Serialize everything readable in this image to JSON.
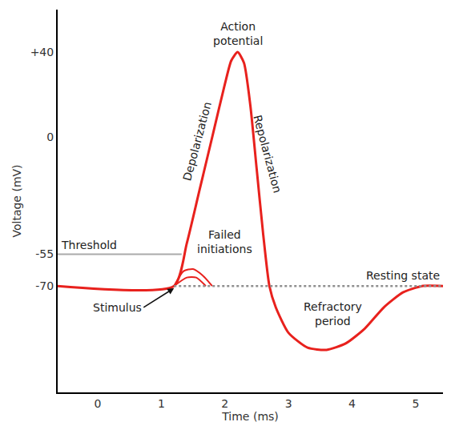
{
  "chart_data": {
    "type": "line",
    "xlabel": "Time (ms)",
    "ylabel": "Voltage (mV)",
    "xlim": [
      -0.63,
      5.43
    ],
    "ylim": [
      -120,
      60
    ],
    "xticks": [
      0,
      1,
      2,
      3,
      4,
      5
    ],
    "yticks": [
      -70,
      -55,
      0,
      {
        "value": 40,
        "label": "+40"
      }
    ],
    "grid": false,
    "series": [
      {
        "name": "Action potential",
        "color": "#e8211d",
        "line_style": "solid",
        "x": [
          -0.63,
          1.2,
          1.4,
          1.6,
          1.8,
          2.0,
          2.1,
          2.2,
          2.3,
          2.4,
          2.5,
          2.6,
          2.7,
          2.8,
          3.0,
          3.3,
          3.6,
          3.9,
          4.2,
          4.5,
          4.8,
          5.1,
          5.43
        ],
        "values": [
          -70,
          -70,
          -50,
          -25,
          0,
          25,
          36,
          40,
          35,
          15,
          -15,
          -45,
          -70,
          -80,
          -92,
          -99,
          -100,
          -97,
          -90,
          -80,
          -73,
          -70,
          -70
        ]
      },
      {
        "name": "Failed initiations",
        "color": "#e8211d",
        "line_style": "solid",
        "x": [
          1.2,
          1.35,
          1.5,
          1.65,
          1.8,
          1.8,
          1.2,
          1.4,
          1.55,
          1.7
        ],
        "values": [
          -70,
          -63,
          -62,
          -65,
          -70,
          null,
          -70,
          -66,
          -66,
          -70
        ]
      },
      {
        "name": "Threshold",
        "color": "#aaaaaa",
        "line_style": "solid",
        "x": [
          -0.63,
          1.32
        ],
        "values": [
          -55,
          -55
        ]
      },
      {
        "name": "Resting state",
        "color": "#8f8f8f",
        "line_style": "dotted",
        "x": [
          1.2,
          5.43
        ],
        "values": [
          -70,
          -70
        ]
      }
    ],
    "annotations": [
      "Depolarization",
      "Repolarization",
      "Stimulus",
      "Refractory period"
    ]
  }
}
